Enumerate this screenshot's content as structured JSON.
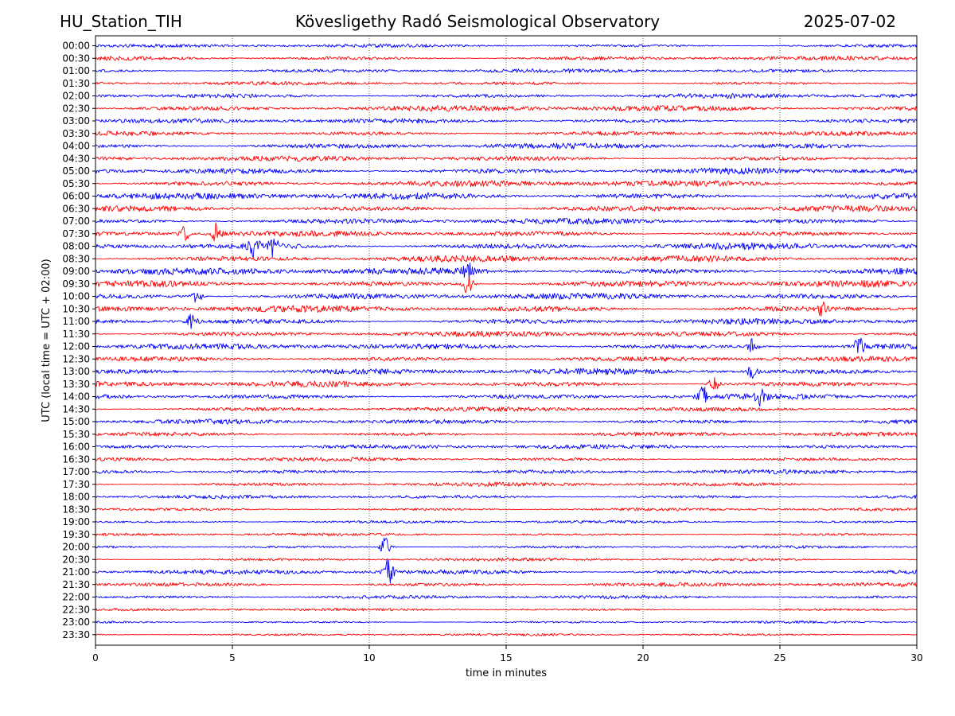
{
  "header": {
    "station": "HU_Station_TIH",
    "title": "Kövesligethy Radó Seismological Observatory",
    "date": "2025-07-02"
  },
  "chart_data": {
    "type": "line",
    "title": "Kövesligethy Radó Seismological Observatory",
    "xlabel": "time in minutes",
    "ylabel": "UTC (local time = UTC + 02:00)",
    "xlim": [
      0,
      30
    ],
    "xticks": [
      "0",
      "5",
      "10",
      "15",
      "20",
      "25",
      "30"
    ],
    "xgrid": "dotted vertical lines at each 5 minutes",
    "row_labels": [
      "00:00",
      "00:30",
      "01:00",
      "01:30",
      "02:00",
      "02:30",
      "03:00",
      "03:30",
      "04:00",
      "04:30",
      "05:00",
      "05:30",
      "06:00",
      "06:30",
      "07:00",
      "07:30",
      "08:00",
      "08:30",
      "09:00",
      "09:30",
      "10:00",
      "10:30",
      "11:00",
      "11:30",
      "12:00",
      "12:30",
      "13:00",
      "13:30",
      "14:00",
      "14:30",
      "15:00",
      "15:30",
      "16:00",
      "16:30",
      "17:00",
      "17:30",
      "18:00",
      "18:30",
      "19:00",
      "19:30",
      "20:00",
      "20:30",
      "21:00",
      "21:30",
      "22:00",
      "22:30",
      "23:00",
      "23:30"
    ],
    "colors": [
      "#0000ff",
      "#ff0000"
    ],
    "noise_level": [
      0.45,
      0.55,
      0.5,
      0.45,
      0.6,
      0.75,
      0.6,
      0.6,
      0.7,
      0.65,
      0.8,
      0.8,
      0.85,
      0.75,
      0.7,
      0.75,
      0.85,
      0.85,
      0.9,
      0.85,
      0.8,
      0.85,
      0.75,
      0.7,
      0.75,
      0.65,
      0.75,
      0.75,
      0.7,
      0.6,
      0.6,
      0.55,
      0.55,
      0.5,
      0.55,
      0.5,
      0.45,
      0.4,
      0.35,
      0.35,
      0.35,
      0.4,
      0.6,
      0.55,
      0.45,
      0.35,
      0.3,
      0.3
    ],
    "bursts": [
      {
        "row": 15,
        "minute": 3.3,
        "amplitude": 1.8
      },
      {
        "row": 15,
        "minute": 4.4,
        "amplitude": 2.0
      },
      {
        "row": 16,
        "minute": 5.8,
        "amplitude": 2.0
      },
      {
        "row": 16,
        "minute": 6.5,
        "amplitude": 1.8
      },
      {
        "row": 18,
        "minute": 13.6,
        "amplitude": 1.6
      },
      {
        "row": 19,
        "minute": 13.6,
        "amplitude": 2.2
      },
      {
        "row": 20,
        "minute": 3.7,
        "amplitude": 1.3
      },
      {
        "row": 21,
        "minute": 26.5,
        "amplitude": 1.3
      },
      {
        "row": 22,
        "minute": 3.5,
        "amplitude": 1.5
      },
      {
        "row": 24,
        "minute": 24.0,
        "amplitude": 1.5
      },
      {
        "row": 24,
        "minute": 27.9,
        "amplitude": 1.8
      },
      {
        "row": 26,
        "minute": 24.0,
        "amplitude": 1.4
      },
      {
        "row": 27,
        "minute": 22.6,
        "amplitude": 1.6
      },
      {
        "row": 28,
        "minute": 22.2,
        "amplitude": 1.8
      },
      {
        "row": 28,
        "minute": 24.3,
        "amplitude": 1.8
      },
      {
        "row": 40,
        "minute": 10.6,
        "amplitude": 2.3
      },
      {
        "row": 42,
        "minute": 10.7,
        "amplitude": 2.5
      }
    ]
  }
}
